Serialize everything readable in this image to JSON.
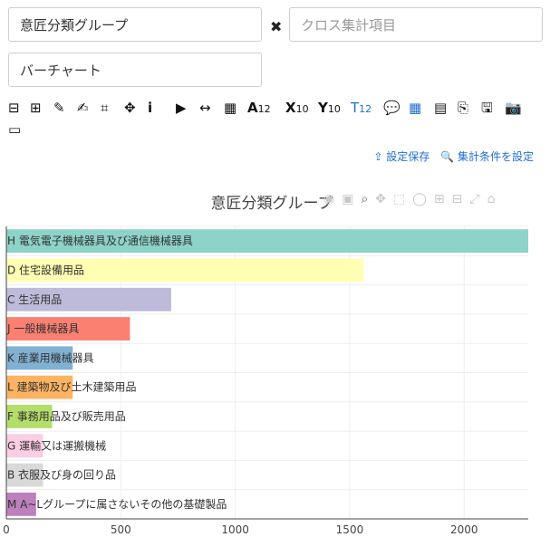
{
  "inputs": {
    "group_value": "意匠分類グループ",
    "cross_placeholder": "クロス集計項目",
    "chart_type_value": "バーチャート"
  },
  "toolbar": {
    "font_size_sub": "12",
    "x_sub": "10",
    "y_sub": "10",
    "t_sub": "12"
  },
  "actions": {
    "save_settings": "設定保存",
    "set_conditions": "集計条件を設定"
  },
  "colors": {
    "accent": "#1f6fd1"
  },
  "chart_data": {
    "type": "bar",
    "orientation": "horizontal",
    "title": "意匠分類グループ",
    "categories": [
      "H 電気電子機械器具及び通信機械器具",
      "D 住宅設備用品",
      "C 生活用品",
      "J 一般機械器具",
      "K 産業用機械器具",
      "L 建築物及び土木建築用品",
      "F 事務用品及び販売用品",
      "G 運輸又は運搬機械",
      "B 衣服及び身の回り品",
      "M A~Lグループに属さないその他の基礎製品"
    ],
    "values": [
      2280,
      1560,
      720,
      540,
      290,
      290,
      200,
      160,
      160,
      130
    ],
    "colors": [
      "#8dd3c7",
      "#ffffb3",
      "#bebada",
      "#fb8072",
      "#80b1d3",
      "#fdb462",
      "#b3de69",
      "#fccde5",
      "#d9d9d9",
      "#bc80bd"
    ],
    "xticks": [
      0,
      500,
      1000,
      1500,
      2000
    ],
    "xlim": [
      0,
      2280
    ],
    "grid": true
  }
}
